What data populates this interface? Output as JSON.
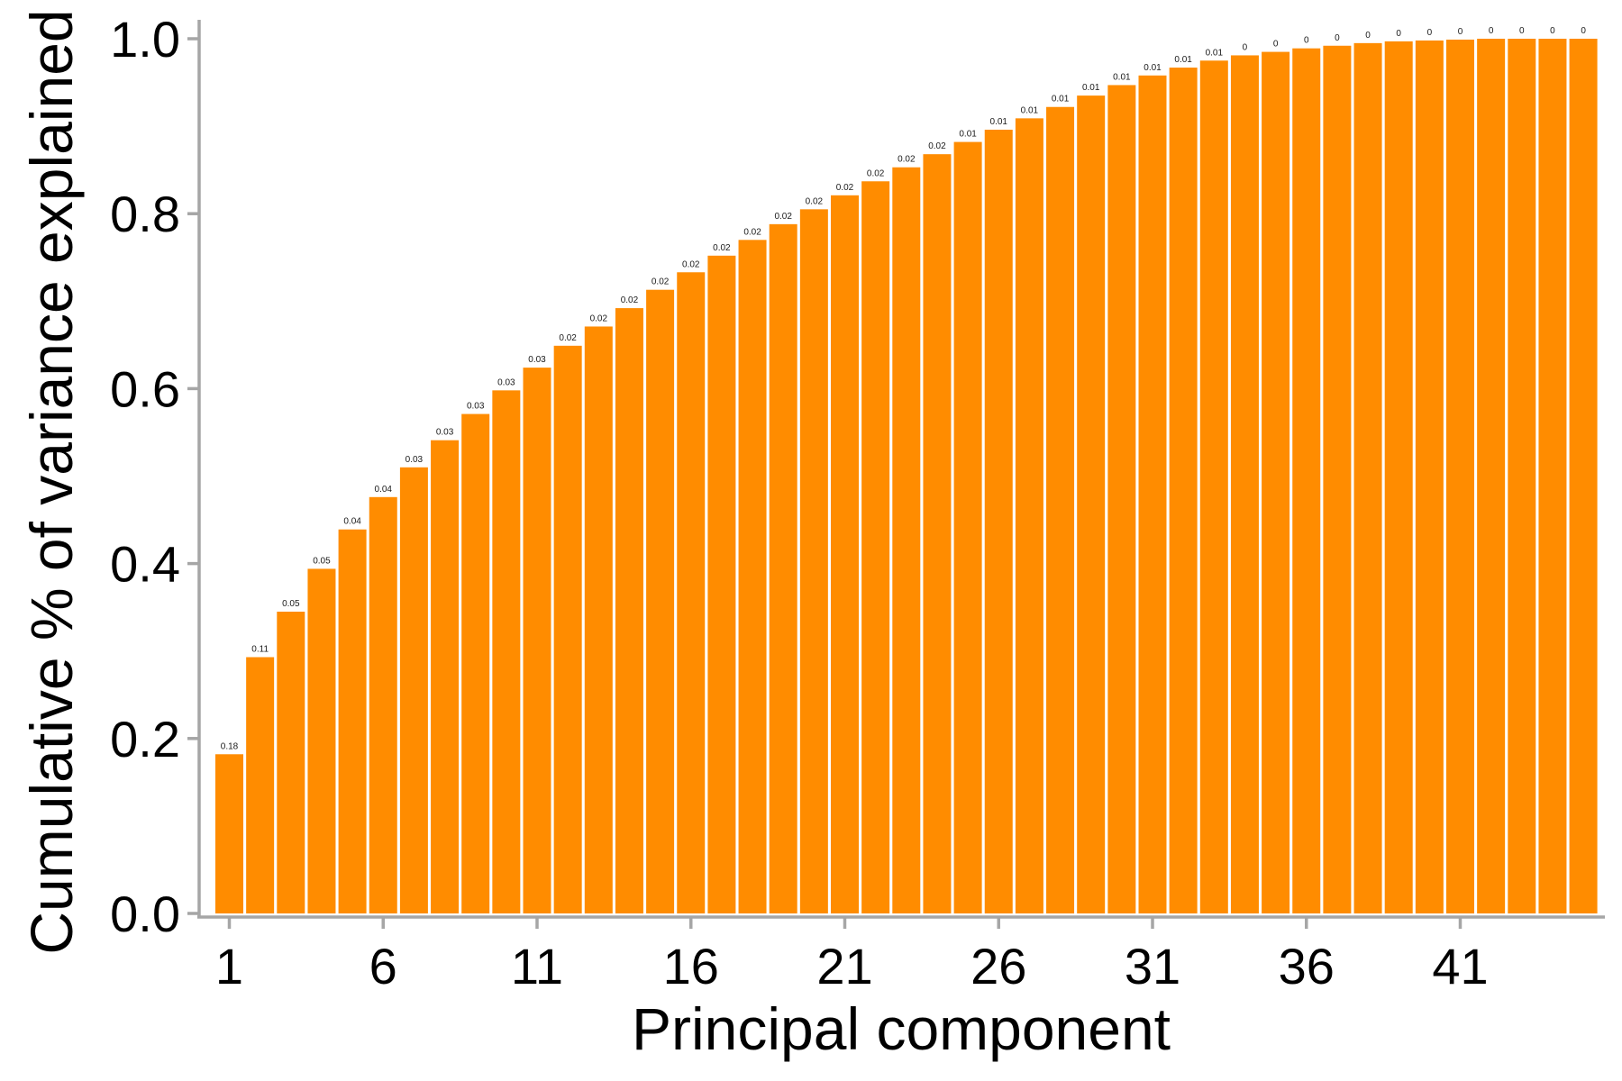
{
  "chart_data": {
    "type": "bar",
    "xlabel": "Principal component",
    "ylabel": "Cumulative % of variance explained",
    "ylim": [
      0,
      1.0
    ],
    "yticks": [
      "0.0",
      "0.2",
      "0.4",
      "0.6",
      "0.8",
      "1.0"
    ],
    "xticks": [
      "1",
      "6",
      "11",
      "16",
      "21",
      "26",
      "31",
      "36",
      "41"
    ],
    "bar_color": "#ff8c00",
    "grid": false,
    "categories": [
      1,
      2,
      3,
      4,
      5,
      6,
      7,
      8,
      9,
      10,
      11,
      12,
      13,
      14,
      15,
      16,
      17,
      18,
      19,
      20,
      21,
      22,
      23,
      24,
      25,
      26,
      27,
      28,
      29,
      30,
      31,
      32,
      33,
      34,
      35,
      36,
      37,
      38,
      39,
      40,
      41,
      42,
      43,
      44,
      45
    ],
    "values": [
      0.182,
      0.293,
      0.345,
      0.394,
      0.439,
      0.476,
      0.51,
      0.541,
      0.571,
      0.598,
      0.624,
      0.649,
      0.671,
      0.692,
      0.713,
      0.733,
      0.752,
      0.77,
      0.788,
      0.805,
      0.821,
      0.837,
      0.853,
      0.868,
      0.882,
      0.896,
      0.909,
      0.922,
      0.935,
      0.947,
      0.958,
      0.967,
      0.975,
      0.981,
      0.985,
      0.989,
      0.992,
      0.995,
      0.997,
      0.998,
      0.999,
      1.0,
      1.0,
      1.0,
      1.0
    ],
    "bar_labels": [
      "0.18",
      "0.11",
      "0.05",
      "0.05",
      "0.04",
      "0.04",
      "0.03",
      "0.03",
      "0.03",
      "0.03",
      "0.03",
      "0.02",
      "0.02",
      "0.02",
      "0.02",
      "0.02",
      "0.02",
      "0.02",
      "0.02",
      "0.02",
      "0.02",
      "0.02",
      "0.02",
      "0.02",
      "0.01",
      "0.01",
      "0.01",
      "0.01",
      "0.01",
      "0.01",
      "0.01",
      "0.01",
      "0.01",
      "0",
      "0",
      "0",
      "0",
      "0",
      "0",
      "0",
      "0",
      "0",
      "0",
      "0",
      "0"
    ]
  }
}
